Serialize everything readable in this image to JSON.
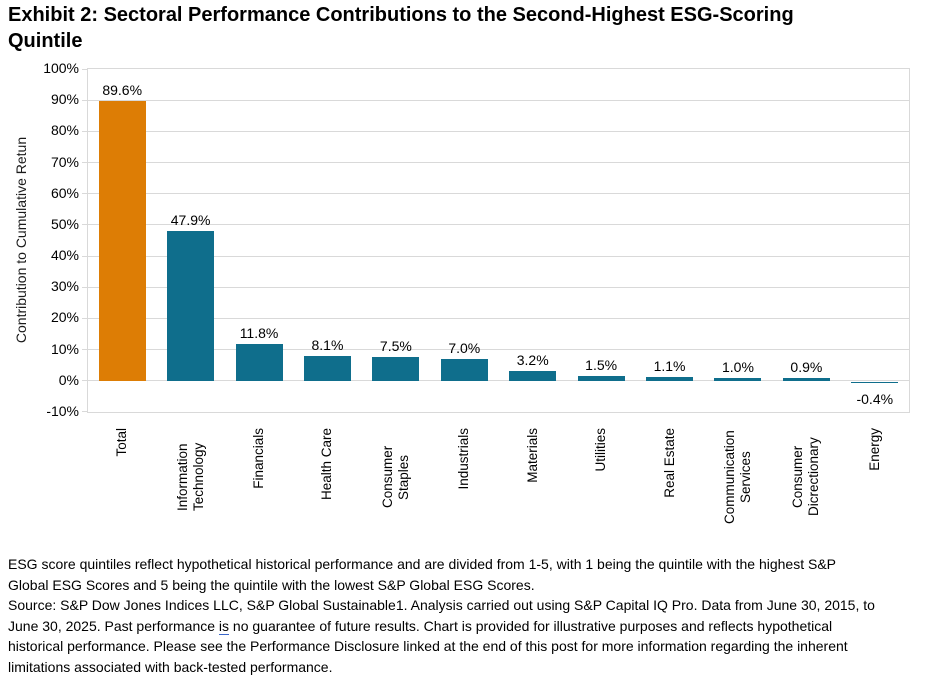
{
  "chart_data": {
    "type": "bar",
    "title": "Exhibit 2: Sectoral Performance Contributions to the Second-Highest ESG-Scoring Quintile",
    "categories": [
      "Total",
      "Information Technology",
      "Financials",
      "Health Care",
      "Consumer Staples",
      "Industrials",
      "Materials",
      "Utilities",
      "Real Estate",
      "Communication Services",
      "Consumer Dicrectionary",
      "Energy"
    ],
    "values": [
      89.6,
      47.9,
      11.8,
      8.1,
      7.5,
      7.0,
      3.2,
      1.5,
      1.1,
      1.0,
      0.9,
      -0.4
    ],
    "value_labels": [
      "89.6%",
      "47.9%",
      "11.8%",
      "8.1%",
      "7.5%",
      "7.0%",
      "3.2%",
      "1.5%",
      "1.1%",
      "1.0%",
      "0.9%",
      "-0.4%"
    ],
    "xlabel": "",
    "ylabel": "Contribution to Cumulative Retun",
    "ylim": [
      -10,
      100
    ],
    "ytick_values": [
      100,
      90,
      80,
      70,
      60,
      50,
      40,
      30,
      20,
      10,
      0,
      -10
    ],
    "ytick_labels": [
      "100%",
      "90%",
      "80%",
      "70%",
      "60%",
      "50%",
      "40%",
      "30%",
      "20%",
      "10%",
      "0%",
      "-10%"
    ],
    "grid": true,
    "legend": "none",
    "highlight_index": 0,
    "colors": {
      "highlight_bar": "#dd7d05",
      "series_bar": "#0f6e8c",
      "gridline": "#d9d9d9",
      "label_text": "#000000"
    }
  },
  "footnotes": {
    "note": "ESG score quintiles reflect hypothetical historical performance and are divided from 1-5, with 1 being the quintile with the highest S&P Global ESG Scores and 5 being the quintile with the lowest S&P Global ESG Scores.",
    "source_before_is": "Source: S&P Dow Jones Indices LLC, S&P Global Sustainable1. Analysis carried out using S&P Capital IQ Pro. Data from June 30, 2015, to June 30, 2025. Past performance ",
    "grammar_flagged_word": "is",
    "source_after_is": " no guarantee of future results. Chart is provided for illustrative purposes and reflects hypothetical historical performance. Please see the Performance Disclosure linked at the end of this post for more information regarding the inherent limitations associated with back-tested performance.",
    "grammar_underline_color": "#3a66c9"
  }
}
